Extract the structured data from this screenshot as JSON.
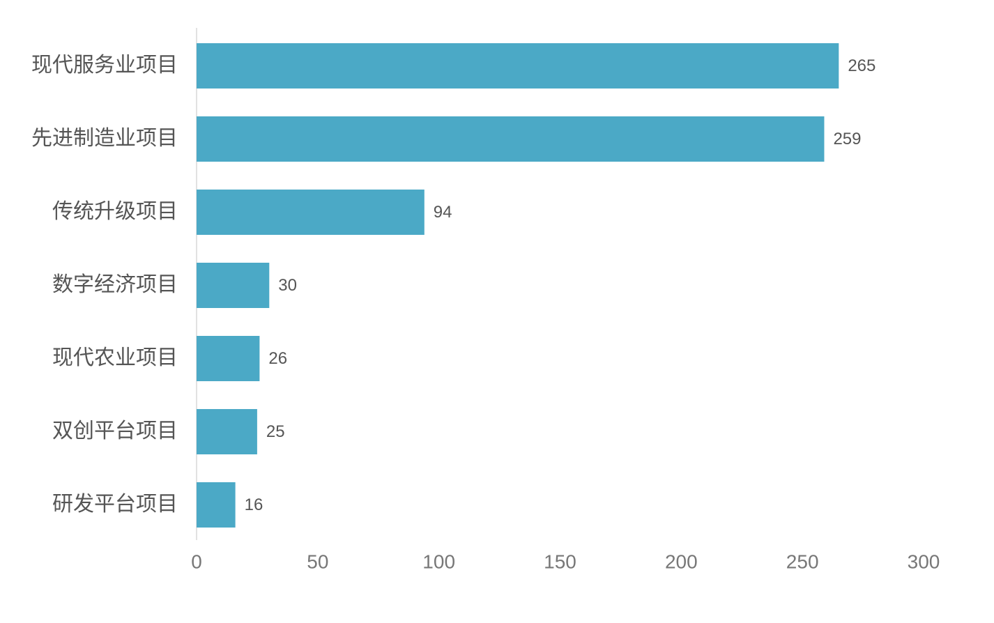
{
  "chart_data": {
    "type": "hbar",
    "categories": [
      "现代服务业项目",
      "先进制造业项目",
      "传统升级项目",
      "数字经济项目",
      "现代农业项目",
      "双创平台项目",
      "研发平台项目"
    ],
    "values": [
      265,
      259,
      94,
      30,
      26,
      25,
      16
    ],
    "color": "#4ba9c6",
    "xlim": [
      0,
      300
    ],
    "xticks": [
      0,
      50,
      100,
      150,
      200,
      250,
      300
    ],
    "grid": false
  }
}
